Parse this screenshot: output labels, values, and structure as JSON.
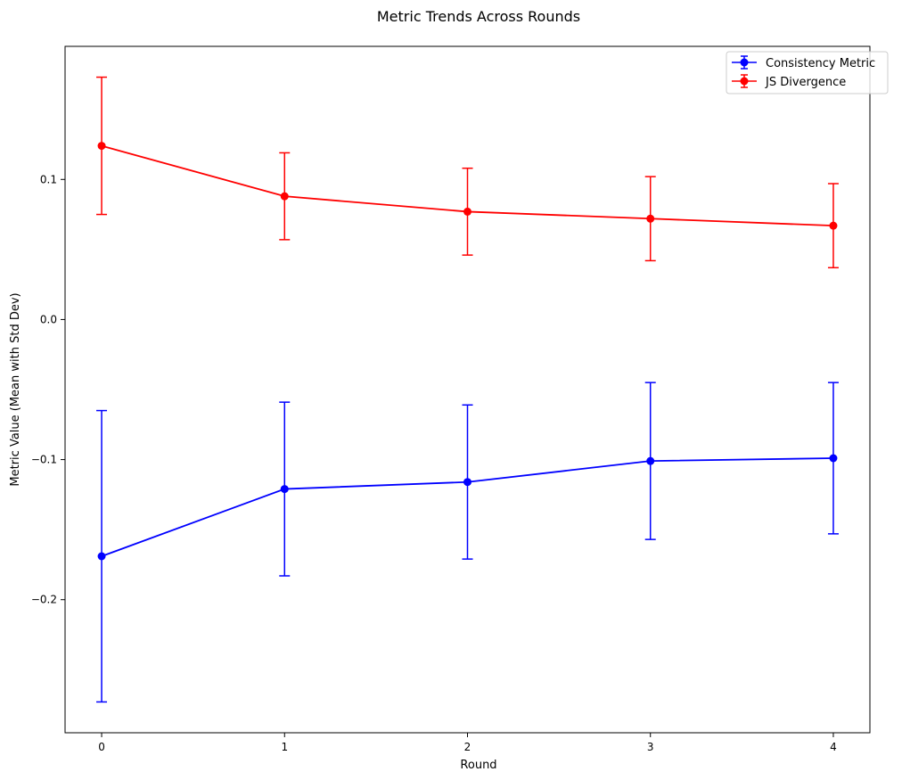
{
  "chart_data": {
    "type": "line",
    "title": "Metric Trends Across Rounds",
    "xlabel": "Round",
    "ylabel": "Metric Value (Mean with Std Dev)",
    "x": [
      0,
      1,
      2,
      3,
      4
    ],
    "x_ticks": [
      "0",
      "1",
      "2",
      "3",
      "4"
    ],
    "xlim": [
      -0.2,
      4.2
    ],
    "y_ticks": [
      "−0.2",
      "−0.1",
      "0.0",
      "0.1"
    ],
    "y_tick_values": [
      -0.2,
      -0.1,
      0.0,
      0.1
    ],
    "ylim": [
      -0.295,
      0.195
    ],
    "grid": false,
    "legend_position": "top-right",
    "series": [
      {
        "name": "Consistency Metric",
        "color": "#0000ff",
        "values": [
          -0.169,
          -0.121,
          -0.116,
          -0.101,
          -0.099
        ],
        "std": [
          0.104,
          0.062,
          0.055,
          0.056,
          0.054
        ]
      },
      {
        "name": "JS Divergence",
        "color": "#ff0000",
        "values": [
          0.124,
          0.088,
          0.077,
          0.072,
          0.067
        ],
        "std": [
          0.049,
          0.031,
          0.031,
          0.03,
          0.03
        ]
      }
    ]
  }
}
